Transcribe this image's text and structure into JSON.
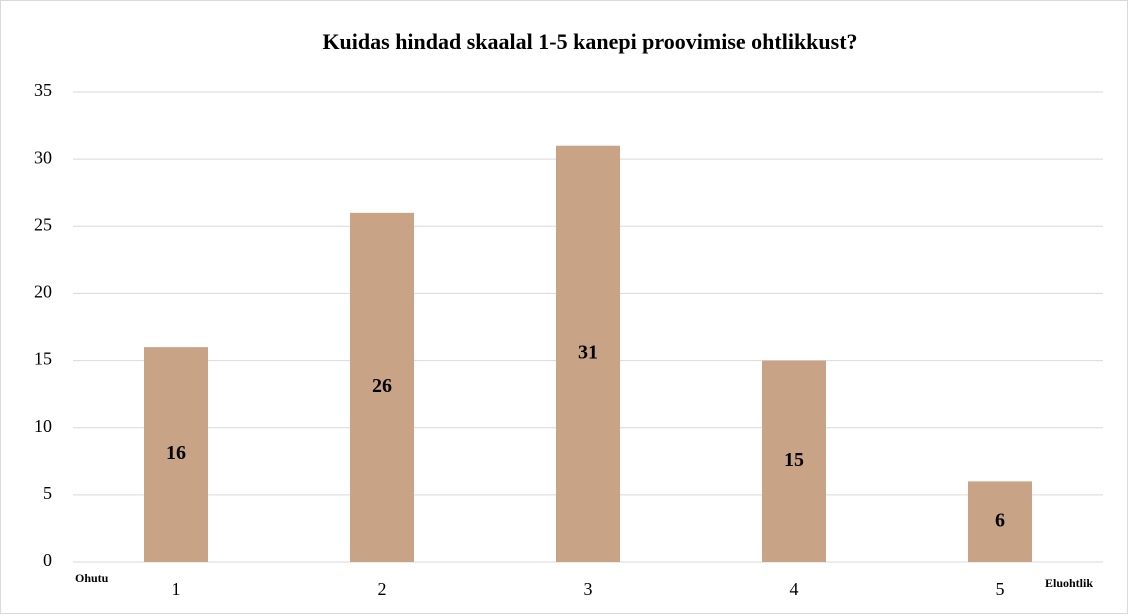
{
  "chart_data": {
    "type": "bar",
    "title": "Kuidas hindad skaalal 1-5 kanepi proovimise ohtlikkust?",
    "categories": [
      "1",
      "2",
      "3",
      "4",
      "5"
    ],
    "values": [
      16,
      26,
      31,
      15,
      6
    ],
    "color": "#c9a385",
    "ylim": [
      0,
      35
    ],
    "yticks": [
      0,
      5,
      10,
      15,
      20,
      25,
      30,
      35
    ],
    "grid": true,
    "annotations": [
      "Ohutu",
      "Eluohtlik"
    ]
  }
}
